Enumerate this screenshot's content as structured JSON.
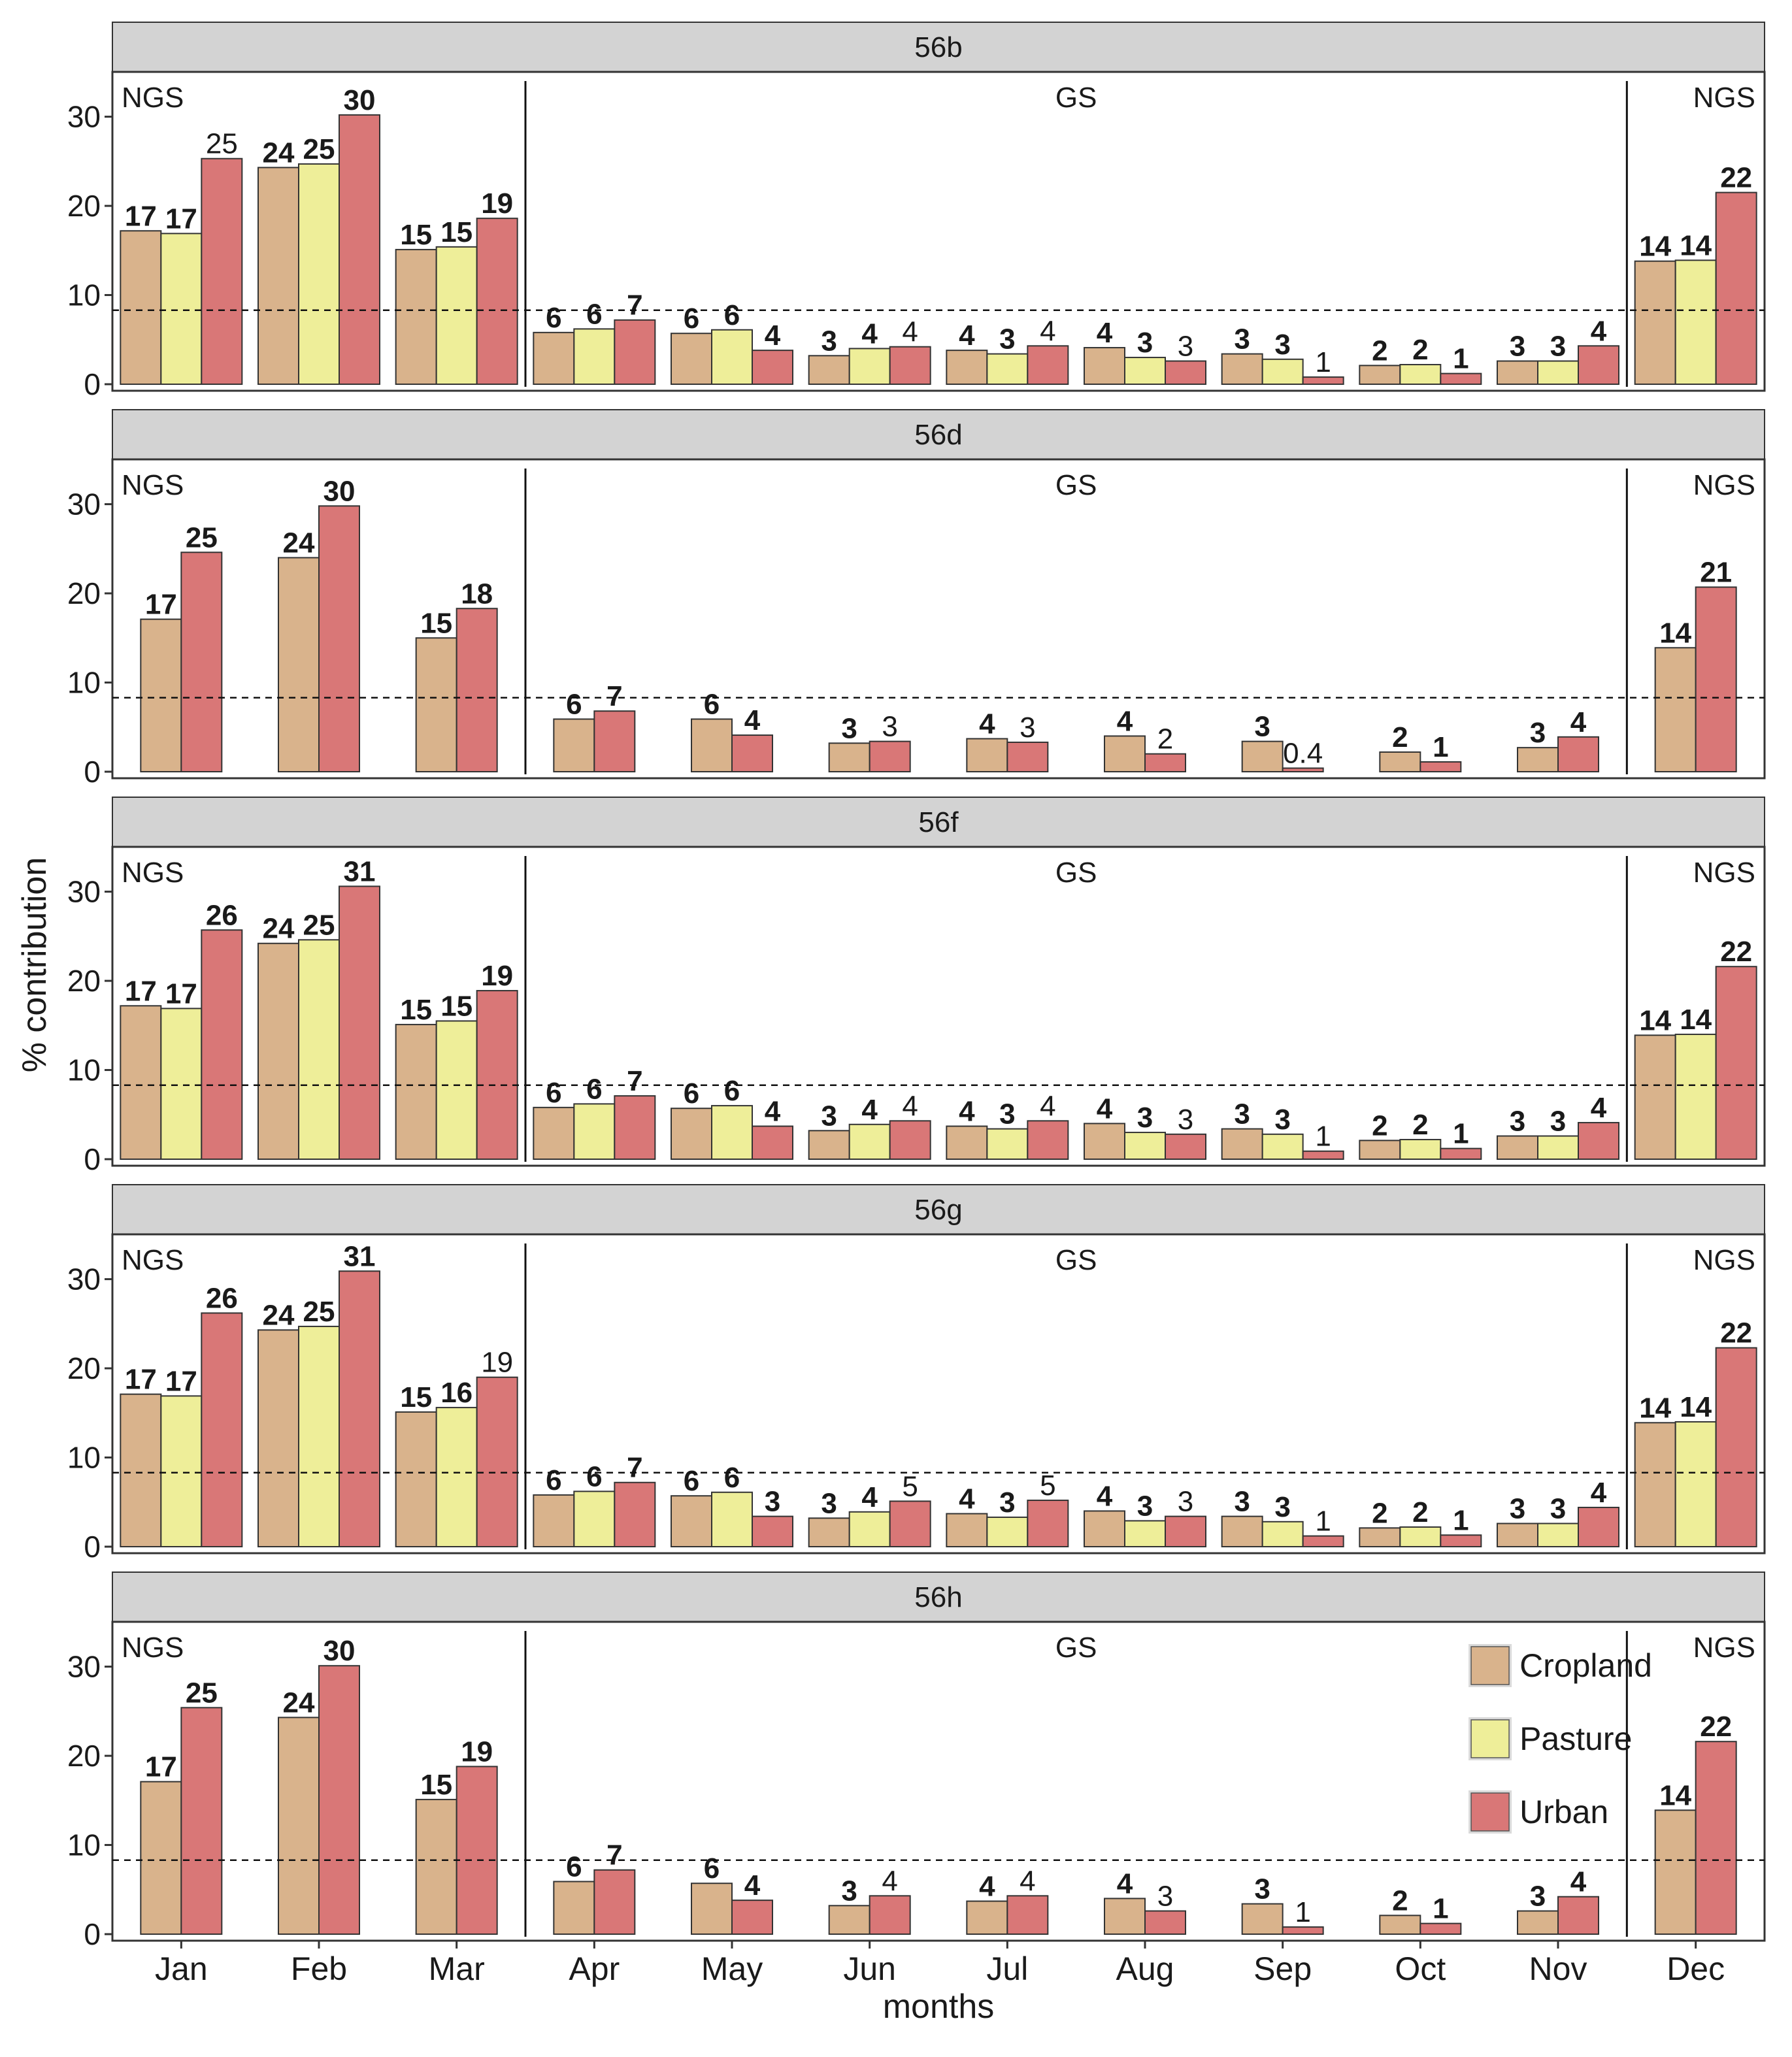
{
  "chart_data": {
    "type": "bar",
    "ylabel": "% contribution",
    "xlabel": "months",
    "ylim": [
      0,
      34
    ],
    "yticks": [
      0,
      10,
      20,
      30
    ],
    "reference_line": 8.3,
    "categories": [
      "Jan",
      "Feb",
      "Mar",
      "Apr",
      "May",
      "Jun",
      "Jul",
      "Aug",
      "Sep",
      "Oct",
      "Nov",
      "Dec"
    ],
    "legend": [
      {
        "name": "Cropland",
        "color": "#d9b38c"
      },
      {
        "name": "Pasture",
        "color": "#eeee99"
      },
      {
        "name": "Urban",
        "color": "#d97777"
      }
    ],
    "legend_position": "inside-right-bottom-panel",
    "region_labels": [
      "NGS",
      "GS",
      "NGS"
    ],
    "panels": [
      {
        "title": "56b",
        "series": [
          {
            "name": "Cropland",
            "values": [
              17.2,
              24.3,
              15.1,
              5.8,
              5.7,
              3.2,
              3.8,
              4.1,
              3.4,
              2.1,
              2.6,
              13.8
            ],
            "labels": [
              "17",
              "24",
              "15",
              "6",
              "6",
              "3",
              "4",
              "4",
              "3",
              "2",
              "3",
              "14"
            ],
            "bold": [
              true,
              true,
              true,
              true,
              true,
              true,
              true,
              true,
              true,
              true,
              true,
              true
            ]
          },
          {
            "name": "Pasture",
            "values": [
              16.9,
              24.7,
              15.4,
              6.2,
              6.1,
              4.0,
              3.4,
              3.0,
              2.8,
              2.2,
              2.6,
              13.9
            ],
            "labels": [
              "17",
              "25",
              "15",
              "6",
              "6",
              "4",
              "3",
              "3",
              "3",
              "2",
              "3",
              "14"
            ],
            "bold": [
              true,
              true,
              true,
              true,
              true,
              true,
              true,
              true,
              true,
              true,
              true,
              true
            ]
          },
          {
            "name": "Urban",
            "values": [
              25.3,
              30.2,
              18.6,
              7.2,
              3.8,
              4.2,
              4.3,
              2.6,
              0.8,
              1.2,
              4.3,
              21.5
            ],
            "labels": [
              "25",
              "30",
              "19",
              "7",
              "4",
              "4",
              "4",
              "3",
              "1",
              "1",
              "4",
              "22"
            ],
            "bold": [
              false,
              true,
              true,
              true,
              true,
              false,
              false,
              false,
              false,
              true,
              true,
              true
            ]
          }
        ]
      },
      {
        "title": "56d",
        "series": [
          {
            "name": "Cropland",
            "values": [
              17.1,
              24.0,
              15.0,
              5.9,
              5.9,
              3.2,
              3.7,
              4.0,
              3.4,
              2.2,
              2.7,
              13.9
            ],
            "labels": [
              "17",
              "24",
              "15",
              "6",
              "6",
              "3",
              "4",
              "4",
              "3",
              "2",
              "3",
              "14"
            ],
            "bold": [
              true,
              true,
              true,
              true,
              true,
              true,
              true,
              true,
              true,
              true,
              true,
              true
            ]
          },
          {
            "name": "Urban",
            "values": [
              24.6,
              29.8,
              18.3,
              6.8,
              4.1,
              3.4,
              3.3,
              2.0,
              0.4,
              1.1,
              3.9,
              20.7
            ],
            "labels": [
              "25",
              "30",
              "18",
              "7",
              "4",
              "3",
              "3",
              "2",
              "0.4",
              "1",
              "4",
              "21"
            ],
            "bold": [
              true,
              true,
              true,
              true,
              true,
              false,
              false,
              false,
              false,
              true,
              true,
              true
            ]
          }
        ]
      },
      {
        "title": "56f",
        "series": [
          {
            "name": "Cropland",
            "values": [
              17.2,
              24.2,
              15.1,
              5.8,
              5.7,
              3.2,
              3.7,
              4.0,
              3.4,
              2.1,
              2.6,
              13.9
            ],
            "labels": [
              "17",
              "24",
              "15",
              "6",
              "6",
              "3",
              "4",
              "4",
              "3",
              "2",
              "3",
              "14"
            ],
            "bold": [
              true,
              true,
              true,
              true,
              true,
              true,
              true,
              true,
              true,
              true,
              true,
              true
            ]
          },
          {
            "name": "Urban",
            "values": [
              25.7,
              30.6,
              18.9,
              7.1,
              3.7,
              4.3,
              4.3,
              2.8,
              0.9,
              1.2,
              4.1,
              21.6
            ],
            "labels": [
              "26",
              "31",
              "19",
              "7",
              "4",
              "4",
              "4",
              "3",
              "1",
              "1",
              "4",
              "22"
            ],
            "bold": [
              true,
              true,
              true,
              true,
              true,
              false,
              false,
              false,
              false,
              true,
              true,
              true
            ]
          },
          {
            "name": "Pasture",
            "values": [
              16.9,
              24.6,
              15.5,
              6.2,
              6.0,
              3.9,
              3.4,
              3.0,
              2.8,
              2.2,
              2.6,
              14.0
            ],
            "labels": [
              "17",
              "25",
              "15",
              "6",
              "6",
              "4",
              "3",
              "3",
              "3",
              "2",
              "3",
              "14"
            ],
            "bold": [
              true,
              true,
              true,
              true,
              true,
              true,
              true,
              true,
              true,
              true,
              true,
              true
            ]
          }
        ]
      },
      {
        "title": "56g",
        "series": [
          {
            "name": "Cropland",
            "values": [
              17.1,
              24.3,
              15.1,
              5.8,
              5.7,
              3.2,
              3.7,
              4.0,
              3.4,
              2.1,
              2.6,
              13.9
            ],
            "labels": [
              "17",
              "24",
              "15",
              "6",
              "6",
              "3",
              "4",
              "4",
              "3",
              "2",
              "3",
              "14"
            ],
            "bold": [
              true,
              true,
              true,
              true,
              true,
              true,
              true,
              true,
              true,
              true,
              true,
              true
            ]
          },
          {
            "name": "Pasture",
            "values": [
              16.9,
              24.7,
              15.6,
              6.2,
              6.1,
              3.9,
              3.3,
              2.9,
              2.8,
              2.2,
              2.6,
              14.0
            ],
            "labels": [
              "17",
              "25",
              "16",
              "6",
              "6",
              "4",
              "3",
              "3",
              "3",
              "2",
              "3",
              "14"
            ],
            "bold": [
              true,
              true,
              true,
              true,
              true,
              true,
              true,
              true,
              true,
              true,
              true,
              true
            ]
          },
          {
            "name": "Urban",
            "values": [
              26.2,
              30.9,
              19.0,
              7.2,
              3.4,
              5.1,
              5.2,
              3.4,
              1.2,
              1.3,
              4.4,
              22.3
            ],
            "labels": [
              "26",
              "31",
              "19",
              "7",
              "3",
              "5",
              "5",
              "3",
              "1",
              "1",
              "4",
              "22"
            ],
            "bold": [
              true,
              true,
              false,
              true,
              true,
              false,
              false,
              false,
              false,
              true,
              true,
              true
            ]
          }
        ]
      },
      {
        "title": "56h",
        "series": [
          {
            "name": "Cropland",
            "values": [
              17.1,
              24.3,
              15.1,
              5.9,
              5.7,
              3.2,
              3.7,
              4.0,
              3.4,
              2.1,
              2.6,
              13.9
            ],
            "labels": [
              "17",
              "24",
              "15",
              "6",
              "6",
              "3",
              "4",
              "4",
              "3",
              "2",
              "3",
              "14"
            ],
            "bold": [
              true,
              true,
              true,
              true,
              true,
              true,
              true,
              true,
              true,
              true,
              true,
              true
            ]
          },
          {
            "name": "Urban",
            "values": [
              25.4,
              30.1,
              18.8,
              7.2,
              3.8,
              4.3,
              4.3,
              2.6,
              0.8,
              1.2,
              4.2,
              21.6
            ],
            "labels": [
              "25",
              "30",
              "19",
              "7",
              "4",
              "4",
              "4",
              "3",
              "1",
              "1",
              "4",
              "22"
            ],
            "bold": [
              true,
              true,
              true,
              true,
              true,
              false,
              false,
              false,
              false,
              true,
              true,
              true
            ]
          }
        ]
      }
    ]
  }
}
